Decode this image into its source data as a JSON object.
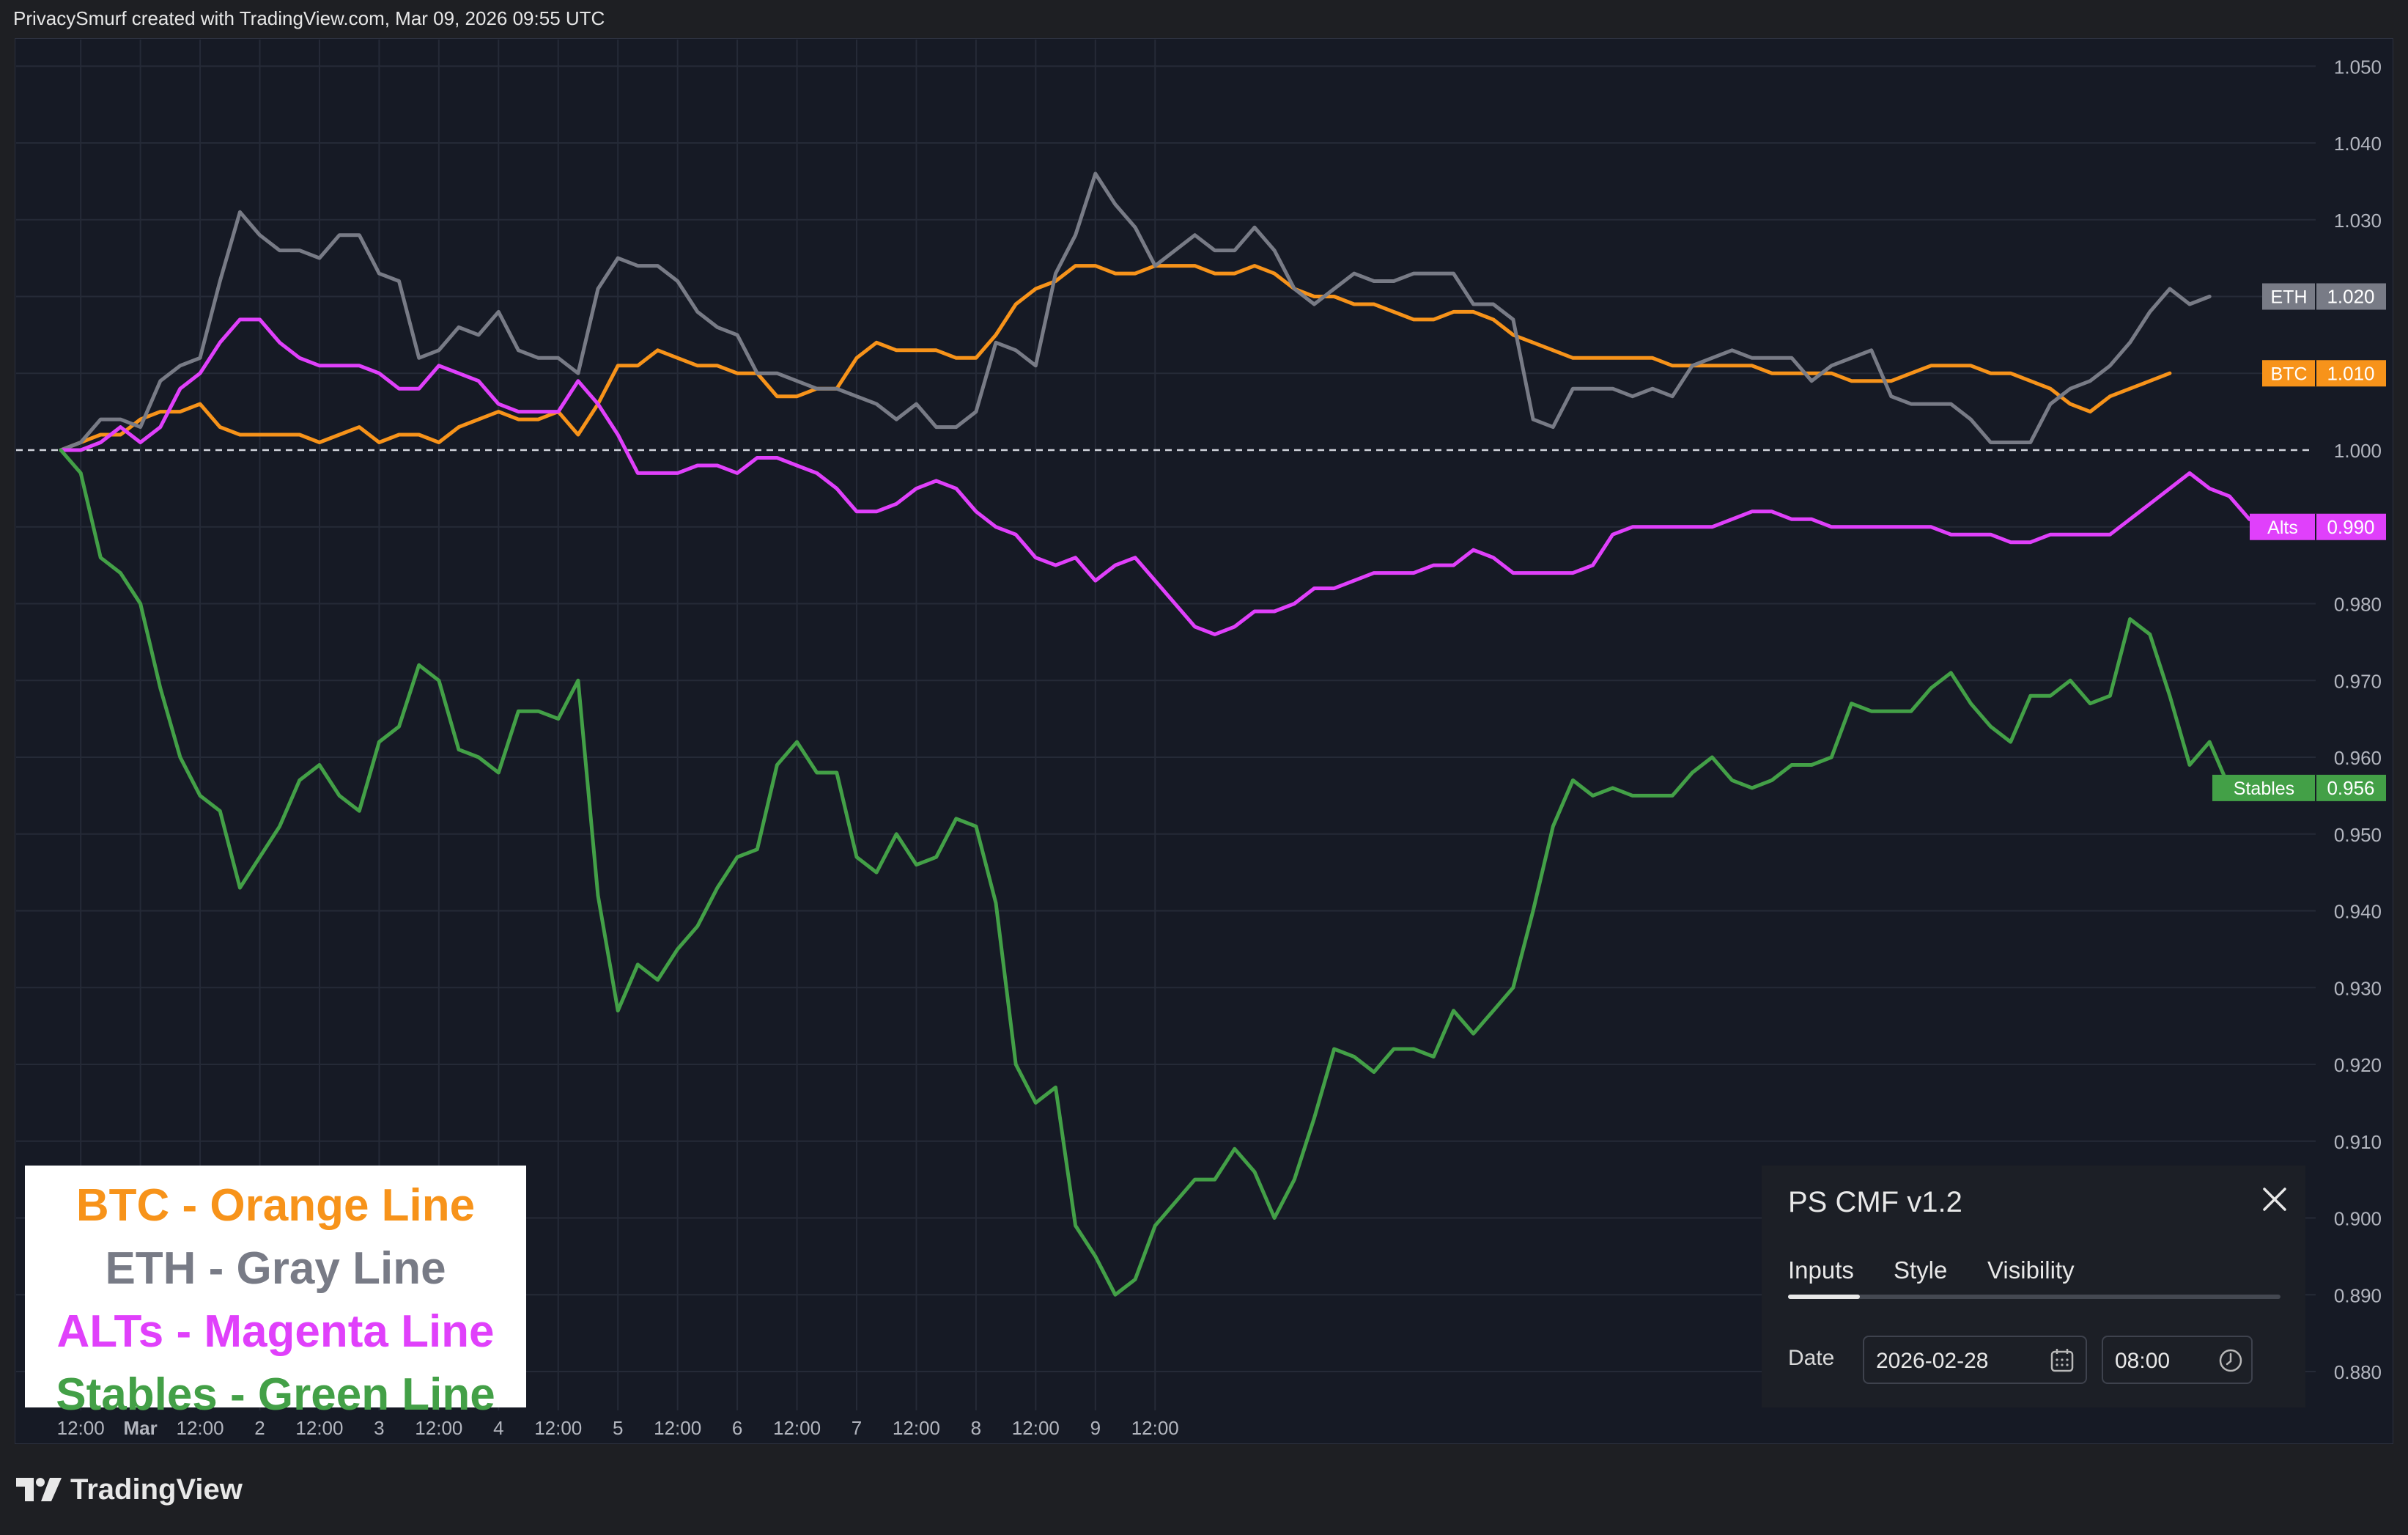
{
  "attribution": "PrivacySmurf created with TradingView.com, Mar 09, 2026 09:55 UTC",
  "brand": "TradingView",
  "legend": [
    {
      "text": "BTC - Orange Line",
      "color": "#f7931a"
    },
    {
      "text": "ETH - Gray Line",
      "color": "#787b86"
    },
    {
      "text": "ALTs - Magenta Line",
      "color": "#e040fb"
    },
    {
      "text": "Stables - Green Line",
      "color": "#43a047"
    }
  ],
  "panel": {
    "title": "PS CMF v1.2",
    "tabs": [
      "Inputs",
      "Style",
      "Visibility"
    ],
    "active_tab": "Inputs",
    "date_label": "Date",
    "date_value": "2026-02-28",
    "time_value": "08:00"
  },
  "chart_data": {
    "type": "line",
    "ylim": [
      0.875,
      1.055
    ],
    "y_ticks": [
      "1.050",
      "1.040",
      "1.030",
      "1.020",
      "1.010",
      "1.000",
      "0.990",
      "0.980",
      "0.970",
      "0.960",
      "0.950",
      "0.940",
      "0.930",
      "0.920",
      "0.910",
      "0.900",
      "0.890",
      "0.880"
    ],
    "x_ticks": [
      "12:00",
      "Mar",
      "12:00",
      "2",
      "12:00",
      "3",
      "12:00",
      "4",
      "12:00",
      "5",
      "12:00",
      "6",
      "12:00",
      "7",
      "12:00",
      "8",
      "12:00",
      "9",
      "12:00"
    ],
    "baseline": 1.0,
    "x_note": "x = hours from 2026-02-28 08:00, 4h bars",
    "series": [
      {
        "name": "BTC",
        "color": "#f7931a",
        "last_label": "1.010",
        "values": [
          1.0,
          1.001,
          1.002,
          1.002,
          1.004,
          1.005,
          1.005,
          1.006,
          1.003,
          1.002,
          1.002,
          1.002,
          1.002,
          1.001,
          1.002,
          1.003,
          1.001,
          1.002,
          1.002,
          1.001,
          1.003,
          1.004,
          1.005,
          1.004,
          1.004,
          1.005,
          1.002,
          1.006,
          1.011,
          1.011,
          1.013,
          1.012,
          1.011,
          1.011,
          1.01,
          1.01,
          1.007,
          1.007,
          1.008,
          1.008,
          1.012,
          1.014,
          1.013,
          1.013,
          1.013,
          1.012,
          1.012,
          1.015,
          1.019,
          1.021,
          1.022,
          1.024,
          1.024,
          1.023,
          1.023,
          1.024,
          1.024,
          1.024,
          1.023,
          1.023,
          1.024,
          1.023,
          1.021,
          1.02,
          1.02,
          1.019,
          1.019,
          1.018,
          1.017,
          1.017,
          1.018,
          1.018,
          1.017,
          1.015,
          1.014,
          1.013,
          1.012,
          1.012,
          1.012,
          1.012,
          1.012,
          1.011,
          1.011,
          1.011,
          1.011,
          1.011,
          1.01,
          1.01,
          1.01,
          1.01,
          1.009,
          1.009,
          1.009,
          1.01,
          1.011,
          1.011,
          1.011,
          1.01,
          1.01,
          1.009,
          1.008,
          1.006,
          1.005,
          1.007,
          1.008,
          1.009,
          1.01
        ]
      },
      {
        "name": "ETH",
        "color": "#787b86",
        "last_label": "1.020",
        "values": [
          1.0,
          1.001,
          1.004,
          1.004,
          1.003,
          1.009,
          1.011,
          1.012,
          1.022,
          1.031,
          1.028,
          1.026,
          1.026,
          1.025,
          1.028,
          1.028,
          1.023,
          1.022,
          1.012,
          1.013,
          1.016,
          1.015,
          1.018,
          1.013,
          1.012,
          1.012,
          1.01,
          1.021,
          1.025,
          1.024,
          1.024,
          1.022,
          1.018,
          1.016,
          1.015,
          1.01,
          1.01,
          1.009,
          1.008,
          1.008,
          1.007,
          1.006,
          1.004,
          1.006,
          1.003,
          1.003,
          1.005,
          1.014,
          1.013,
          1.011,
          1.023,
          1.028,
          1.036,
          1.032,
          1.029,
          1.024,
          1.026,
          1.028,
          1.026,
          1.026,
          1.029,
          1.026,
          1.021,
          1.019,
          1.021,
          1.023,
          1.022,
          1.022,
          1.023,
          1.023,
          1.023,
          1.019,
          1.019,
          1.017,
          1.004,
          1.003,
          1.008,
          1.008,
          1.008,
          1.007,
          1.008,
          1.007,
          1.011,
          1.012,
          1.013,
          1.012,
          1.012,
          1.012,
          1.009,
          1.011,
          1.012,
          1.013,
          1.007,
          1.006,
          1.006,
          1.006,
          1.004,
          1.001,
          1.001,
          1.001,
          1.006,
          1.008,
          1.009,
          1.011,
          1.014,
          1.018,
          1.021,
          1.019,
          1.02
        ]
      },
      {
        "name": "Alts",
        "color": "#e040fb",
        "last_label": "0.990",
        "values": [
          1.0,
          1.0,
          1.001,
          1.003,
          1.001,
          1.003,
          1.008,
          1.01,
          1.014,
          1.017,
          1.017,
          1.014,
          1.012,
          1.011,
          1.011,
          1.011,
          1.01,
          1.008,
          1.008,
          1.011,
          1.01,
          1.009,
          1.006,
          1.005,
          1.005,
          1.005,
          1.009,
          1.006,
          1.002,
          0.997,
          0.997,
          0.997,
          0.998,
          0.998,
          0.997,
          0.999,
          0.999,
          0.998,
          0.997,
          0.995,
          0.992,
          0.992,
          0.993,
          0.995,
          0.996,
          0.995,
          0.992,
          0.99,
          0.989,
          0.986,
          0.985,
          0.986,
          0.983,
          0.985,
          0.986,
          0.983,
          0.98,
          0.977,
          0.976,
          0.977,
          0.979,
          0.979,
          0.98,
          0.982,
          0.982,
          0.983,
          0.984,
          0.984,
          0.984,
          0.985,
          0.985,
          0.987,
          0.986,
          0.984,
          0.984,
          0.984,
          0.984,
          0.985,
          0.989,
          0.99,
          0.99,
          0.99,
          0.99,
          0.99,
          0.991,
          0.992,
          0.992,
          0.991,
          0.991,
          0.99,
          0.99,
          0.99,
          0.99,
          0.99,
          0.99,
          0.989,
          0.989,
          0.989,
          0.988,
          0.988,
          0.989,
          0.989,
          0.989,
          0.989,
          0.991,
          0.993,
          0.995,
          0.997,
          0.995,
          0.994,
          0.991,
          0.99
        ]
      },
      {
        "name": "Stables",
        "color": "#43a047",
        "last_label": "0.956",
        "values": [
          1.0,
          0.997,
          0.986,
          0.984,
          0.98,
          0.969,
          0.96,
          0.955,
          0.953,
          0.943,
          0.947,
          0.951,
          0.957,
          0.959,
          0.955,
          0.953,
          0.962,
          0.964,
          0.972,
          0.97,
          0.961,
          0.96,
          0.958,
          0.966,
          0.966,
          0.965,
          0.97,
          0.942,
          0.927,
          0.933,
          0.931,
          0.935,
          0.938,
          0.943,
          0.947,
          0.948,
          0.959,
          0.962,
          0.958,
          0.958,
          0.947,
          0.945,
          0.95,
          0.946,
          0.947,
          0.952,
          0.951,
          0.941,
          0.92,
          0.915,
          0.917,
          0.899,
          0.895,
          0.89,
          0.892,
          0.899,
          0.902,
          0.905,
          0.905,
          0.909,
          0.906,
          0.9,
          0.905,
          0.913,
          0.922,
          0.921,
          0.919,
          0.922,
          0.922,
          0.921,
          0.927,
          0.924,
          0.927,
          0.93,
          0.94,
          0.951,
          0.957,
          0.955,
          0.956,
          0.955,
          0.955,
          0.955,
          0.958,
          0.96,
          0.957,
          0.956,
          0.957,
          0.959,
          0.959,
          0.96,
          0.967,
          0.966,
          0.966,
          0.966,
          0.969,
          0.971,
          0.967,
          0.964,
          0.962,
          0.968,
          0.968,
          0.97,
          0.967,
          0.968,
          0.978,
          0.976,
          0.968,
          0.959,
          0.962,
          0.956
        ]
      }
    ]
  }
}
